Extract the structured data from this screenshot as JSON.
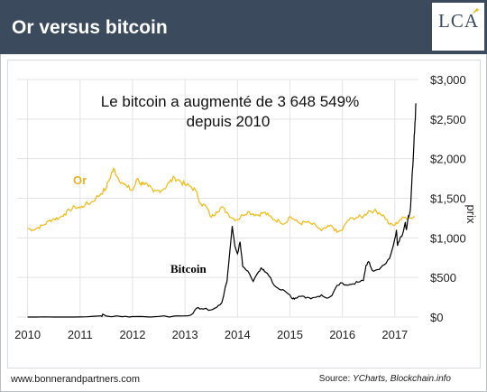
{
  "header": {
    "title": "Or versus bitcoin",
    "logo_text": "LCA",
    "background": "#3c4a5e"
  },
  "footer": {
    "website": "www.bonnerandpartners.com",
    "source_prefix": "Source: ",
    "source_names": "YCharts, Blockchain.info"
  },
  "chart_data": {
    "type": "line",
    "annotation_line1": "Le bitcoin a augmenté de 3 648 549%",
    "annotation_line2": "depuis 2010",
    "ylabel": "prix",
    "x_ticks": [
      "2010",
      "2011",
      "2012",
      "2013",
      "2014",
      "2015",
      "2016",
      "2017"
    ],
    "x_tick_values": [
      2010,
      2011,
      2012,
      2013,
      2014,
      2015,
      2016,
      2017
    ],
    "y_ticks": [
      "$0",
      "$500",
      "$1,000",
      "$1,500",
      "$2,000",
      "$2,500",
      "$3,000"
    ],
    "y_tick_values": [
      0,
      500,
      1000,
      1500,
      2000,
      2500,
      3000
    ],
    "xlim": [
      2009.8,
      2017.45
    ],
    "ylim": [
      0,
      3000
    ],
    "grid": true,
    "series": [
      {
        "name": "Or",
        "color": "#f2bd1d",
        "points": [
          [
            2010.0,
            1120
          ],
          [
            2010.1,
            1100
          ],
          [
            2010.2,
            1130
          ],
          [
            2010.3,
            1160
          ],
          [
            2010.4,
            1210
          ],
          [
            2010.5,
            1240
          ],
          [
            2010.6,
            1250
          ],
          [
            2010.7,
            1300
          ],
          [
            2010.8,
            1350
          ],
          [
            2010.9,
            1390
          ],
          [
            2011.0,
            1380
          ],
          [
            2011.1,
            1420
          ],
          [
            2011.2,
            1440
          ],
          [
            2011.3,
            1500
          ],
          [
            2011.4,
            1560
          ],
          [
            2011.5,
            1630
          ],
          [
            2011.6,
            1820
          ],
          [
            2011.65,
            1870
          ],
          [
            2011.7,
            1780
          ],
          [
            2011.8,
            1700
          ],
          [
            2011.9,
            1640
          ],
          [
            2012.0,
            1600
          ],
          [
            2012.1,
            1750
          ],
          [
            2012.15,
            1680
          ],
          [
            2012.2,
            1700
          ],
          [
            2012.3,
            1650
          ],
          [
            2012.4,
            1580
          ],
          [
            2012.5,
            1600
          ],
          [
            2012.6,
            1620
          ],
          [
            2012.7,
            1700
          ],
          [
            2012.8,
            1760
          ],
          [
            2012.9,
            1720
          ],
          [
            2013.0,
            1670
          ],
          [
            2013.1,
            1650
          ],
          [
            2013.2,
            1600
          ],
          [
            2013.3,
            1430
          ],
          [
            2013.4,
            1400
          ],
          [
            2013.5,
            1260
          ],
          [
            2013.6,
            1330
          ],
          [
            2013.7,
            1390
          ],
          [
            2013.8,
            1320
          ],
          [
            2013.9,
            1250
          ],
          [
            2014.0,
            1230
          ],
          [
            2014.1,
            1290
          ],
          [
            2014.2,
            1330
          ],
          [
            2014.3,
            1300
          ],
          [
            2014.4,
            1290
          ],
          [
            2014.5,
            1320
          ],
          [
            2014.6,
            1280
          ],
          [
            2014.7,
            1230
          ],
          [
            2014.8,
            1210
          ],
          [
            2014.9,
            1180
          ],
          [
            2015.0,
            1270
          ],
          [
            2015.1,
            1220
          ],
          [
            2015.2,
            1180
          ],
          [
            2015.3,
            1200
          ],
          [
            2015.4,
            1180
          ],
          [
            2015.5,
            1150
          ],
          [
            2015.6,
            1090
          ],
          [
            2015.7,
            1130
          ],
          [
            2015.8,
            1150
          ],
          [
            2015.9,
            1070
          ],
          [
            2016.0,
            1100
          ],
          [
            2016.1,
            1220
          ],
          [
            2016.2,
            1250
          ],
          [
            2016.3,
            1260
          ],
          [
            2016.4,
            1270
          ],
          [
            2016.5,
            1340
          ],
          [
            2016.6,
            1340
          ],
          [
            2016.7,
            1320
          ],
          [
            2016.8,
            1270
          ],
          [
            2016.9,
            1170
          ],
          [
            2017.0,
            1160
          ],
          [
            2017.1,
            1230
          ],
          [
            2017.2,
            1260
          ],
          [
            2017.3,
            1250
          ],
          [
            2017.38,
            1270
          ]
        ]
      },
      {
        "name": "Bitcoin",
        "color": "#000000",
        "points": [
          [
            2010.0,
            0
          ],
          [
            2010.5,
            0
          ],
          [
            2011.0,
            1
          ],
          [
            2011.4,
            15
          ],
          [
            2011.45,
            30
          ],
          [
            2011.5,
            12
          ],
          [
            2011.8,
            4
          ],
          [
            2012.0,
            6
          ],
          [
            2012.5,
            8
          ],
          [
            2012.8,
            12
          ],
          [
            2013.0,
            15
          ],
          [
            2013.15,
            45
          ],
          [
            2013.25,
            120
          ],
          [
            2013.35,
            100
          ],
          [
            2013.5,
            90
          ],
          [
            2013.6,
            120
          ],
          [
            2013.7,
            180
          ],
          [
            2013.8,
            450
          ],
          [
            2013.85,
            800
          ],
          [
            2013.9,
            1150
          ],
          [
            2013.95,
            900
          ],
          [
            2014.0,
            800
          ],
          [
            2014.05,
            950
          ],
          [
            2014.1,
            640
          ],
          [
            2014.2,
            580
          ],
          [
            2014.3,
            450
          ],
          [
            2014.4,
            570
          ],
          [
            2014.45,
            620
          ],
          [
            2014.5,
            600
          ],
          [
            2014.55,
            560
          ],
          [
            2014.6,
            520
          ],
          [
            2014.7,
            400
          ],
          [
            2014.8,
            350
          ],
          [
            2014.9,
            330
          ],
          [
            2015.0,
            280
          ],
          [
            2015.05,
            230
          ],
          [
            2015.1,
            240
          ],
          [
            2015.2,
            260
          ],
          [
            2015.3,
            240
          ],
          [
            2015.4,
            230
          ],
          [
            2015.5,
            250
          ],
          [
            2015.6,
            280
          ],
          [
            2015.7,
            240
          ],
          [
            2015.8,
            270
          ],
          [
            2015.9,
            400
          ],
          [
            2016.0,
            430
          ],
          [
            2016.1,
            400
          ],
          [
            2016.2,
            420
          ],
          [
            2016.3,
            440
          ],
          [
            2016.4,
            460
          ],
          [
            2016.45,
            650
          ],
          [
            2016.5,
            700
          ],
          [
            2016.55,
            620
          ],
          [
            2016.6,
            580
          ],
          [
            2016.7,
            600
          ],
          [
            2016.8,
            660
          ],
          [
            2016.9,
            740
          ],
          [
            2017.0,
            990
          ],
          [
            2017.03,
            1100
          ],
          [
            2017.05,
            900
          ],
          [
            2017.1,
            1000
          ],
          [
            2017.15,
            1050
          ],
          [
            2017.2,
            1200
          ],
          [
            2017.22,
            1100
          ],
          [
            2017.25,
            1250
          ],
          [
            2017.28,
            1300
          ],
          [
            2017.3,
            1400
          ],
          [
            2017.33,
            1800
          ],
          [
            2017.35,
            2000
          ],
          [
            2017.37,
            2300
          ],
          [
            2017.39,
            2500
          ],
          [
            2017.4,
            2700
          ]
        ]
      }
    ],
    "series_labels": [
      {
        "series": "Or",
        "text": "Or",
        "color": "#e6b320"
      },
      {
        "series": "Bitcoin",
        "text": "Bitcoin",
        "color": "#000000"
      }
    ]
  }
}
